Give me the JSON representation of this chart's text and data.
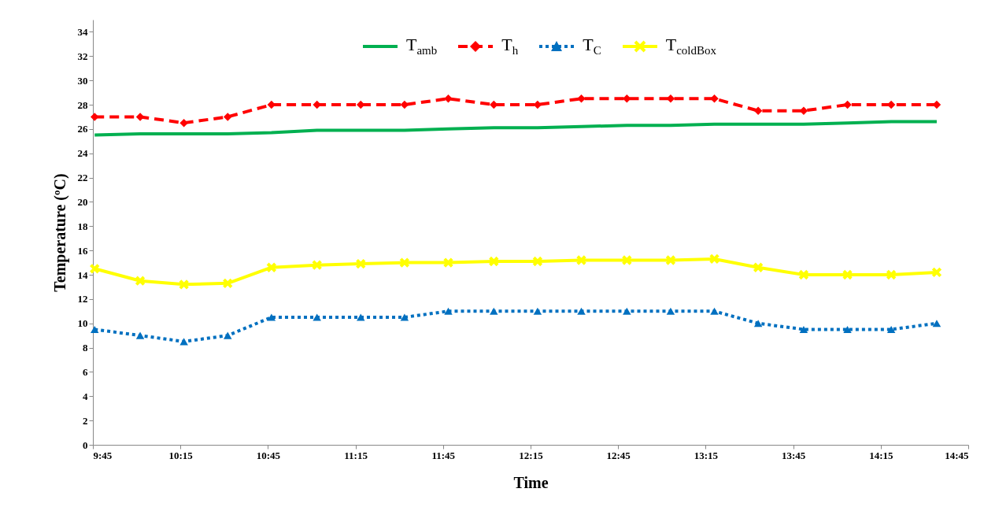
{
  "chart_data": {
    "type": "line",
    "xlabel": "Time",
    "ylabel": "Temperature (ºC)",
    "x": [
      9.76,
      10.02,
      10.27,
      10.52,
      10.77,
      11.03,
      11.28,
      11.53,
      11.78,
      12.04,
      12.29,
      12.54,
      12.8,
      13.05,
      13.3,
      13.55,
      13.81,
      14.06,
      14.31,
      14.57
    ],
    "xlim": [
      9.75,
      14.75
    ],
    "xticks": [
      {
        "value": 9.75,
        "label": "9:45"
      },
      {
        "value": 10.25,
        "label": "10:15"
      },
      {
        "value": 10.75,
        "label": "10:45"
      },
      {
        "value": 11.25,
        "label": "11:15"
      },
      {
        "value": 11.75,
        "label": "11:45"
      },
      {
        "value": 12.25,
        "label": "12:15"
      },
      {
        "value": 12.75,
        "label": "12:45"
      },
      {
        "value": 13.25,
        "label": "13:15"
      },
      {
        "value": 13.75,
        "label": "13:45"
      },
      {
        "value": 14.25,
        "label": "14:15"
      },
      {
        "value": 14.75,
        "label": "14:45"
      }
    ],
    "ylim": [
      0,
      35
    ],
    "yticks": [
      0,
      2,
      4,
      6,
      8,
      10,
      12,
      14,
      16,
      18,
      20,
      22,
      24,
      26,
      28,
      30,
      32,
      34
    ],
    "grid": false,
    "legend": "top",
    "series": [
      {
        "name": "T$_{amb}$",
        "color": "#00b050",
        "marker": "none",
        "line_style": "solid",
        "values": [
          25.5,
          25.6,
          25.6,
          25.6,
          25.7,
          25.9,
          25.9,
          25.9,
          26.0,
          26.1,
          26.1,
          26.2,
          26.3,
          26.3,
          26.4,
          26.4,
          26.4,
          26.5,
          26.6,
          26.6
        ]
      },
      {
        "name": "T$_{h}$",
        "color": "#ff0000",
        "marker": "diamond",
        "line_style": "dashed",
        "values": [
          27,
          27,
          26.5,
          27,
          28,
          28,
          28,
          28,
          28.5,
          28,
          28,
          28.5,
          28.5,
          28.5,
          28.5,
          27.5,
          27.5,
          28,
          28,
          28
        ]
      },
      {
        "name": "T$_{C}$",
        "color": "#0070c0",
        "marker": "triangle",
        "line_style": "dotted",
        "values": [
          9.5,
          9,
          8.5,
          9,
          10.5,
          10.5,
          10.5,
          10.5,
          11,
          11,
          11,
          11,
          11,
          11,
          11,
          10,
          9.5,
          9.5,
          9.5,
          10
        ]
      },
      {
        "name": "T$_{coldBox}$",
        "color": "#ffff00",
        "marker": "cross",
        "line_style": "solid",
        "values": [
          14.5,
          13.5,
          13.2,
          13.3,
          14.6,
          14.8,
          14.9,
          15.0,
          15.0,
          15.1,
          15.1,
          15.2,
          15.2,
          15.2,
          15.3,
          14.6,
          14.0,
          14.0,
          14.0,
          14.2
        ]
      }
    ]
  }
}
